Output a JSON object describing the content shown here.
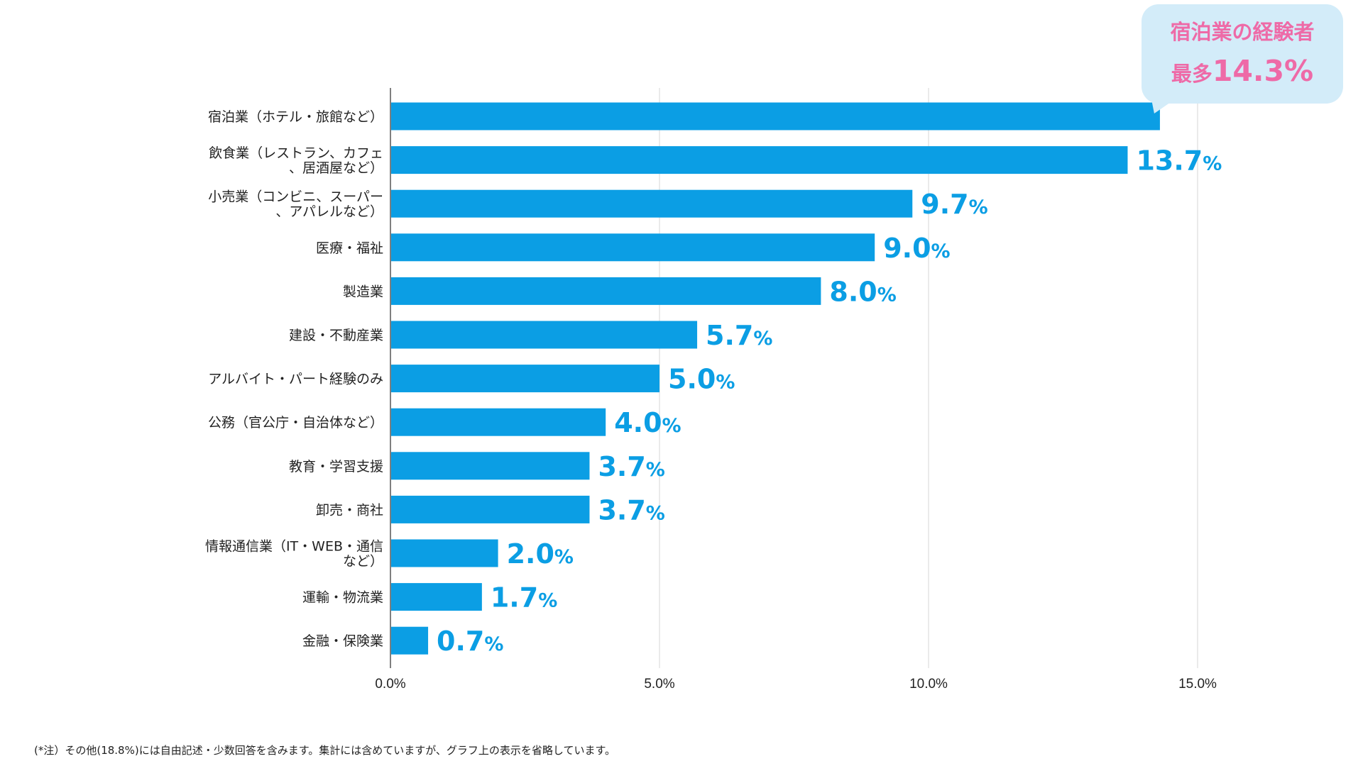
{
  "chart_data": {
    "type": "bar",
    "orientation": "horizontal",
    "categories": [
      [
        "宿泊業（ホテル・旅館など）"
      ],
      [
        "飲食業（レストラン、カフェ",
        "、居酒屋など）"
      ],
      [
        "小売業（コンビニ、スーパー",
        "、アパレルなど）"
      ],
      [
        "医療・福祉"
      ],
      [
        "製造業"
      ],
      [
        "建設・不動産業"
      ],
      [
        "アルバイト・パート経験のみ"
      ],
      [
        "公務（官公庁・自治体など）"
      ],
      [
        "教育・学習支援"
      ],
      [
        "卸売・商社"
      ],
      [
        "情報通信業（IT・WEB・通信",
        "など）"
      ],
      [
        "運輸・物流業"
      ],
      [
        "金融・保険業"
      ]
    ],
    "values": [
      14.3,
      13.7,
      9.7,
      9.0,
      8.0,
      5.7,
      5.0,
      4.0,
      3.7,
      3.7,
      2.0,
      1.7,
      0.7
    ],
    "data_labels": [
      "",
      "13.7",
      "9.7",
      "9.0",
      "8.0",
      "5.7",
      "5.0",
      "4.0",
      "3.7",
      "3.7",
      "2.0",
      "1.7",
      "0.7"
    ],
    "data_label_unit": "%",
    "x_ticks": [
      "0.0%",
      "5.0%",
      "10.0%",
      "15.0%"
    ],
    "x_tick_values": [
      0,
      5,
      10,
      15
    ],
    "xlim": [
      0,
      15
    ],
    "grid": true,
    "bar_color": "#0b9ee4",
    "label_color": "#0b9ee4",
    "title": "",
    "xlabel": "",
    "ylabel": ""
  },
  "callout": {
    "title": "宿泊業の経験者",
    "prefix": "最多",
    "value": "14.3%",
    "bg_color": "#d3ecf9",
    "text_color": "#ee6aa7"
  },
  "footnote": "(*注）その他(18.8%)には自由記述・少数回答を含みます。集計には含めていますが、グラフ上の表示を省略しています。"
}
